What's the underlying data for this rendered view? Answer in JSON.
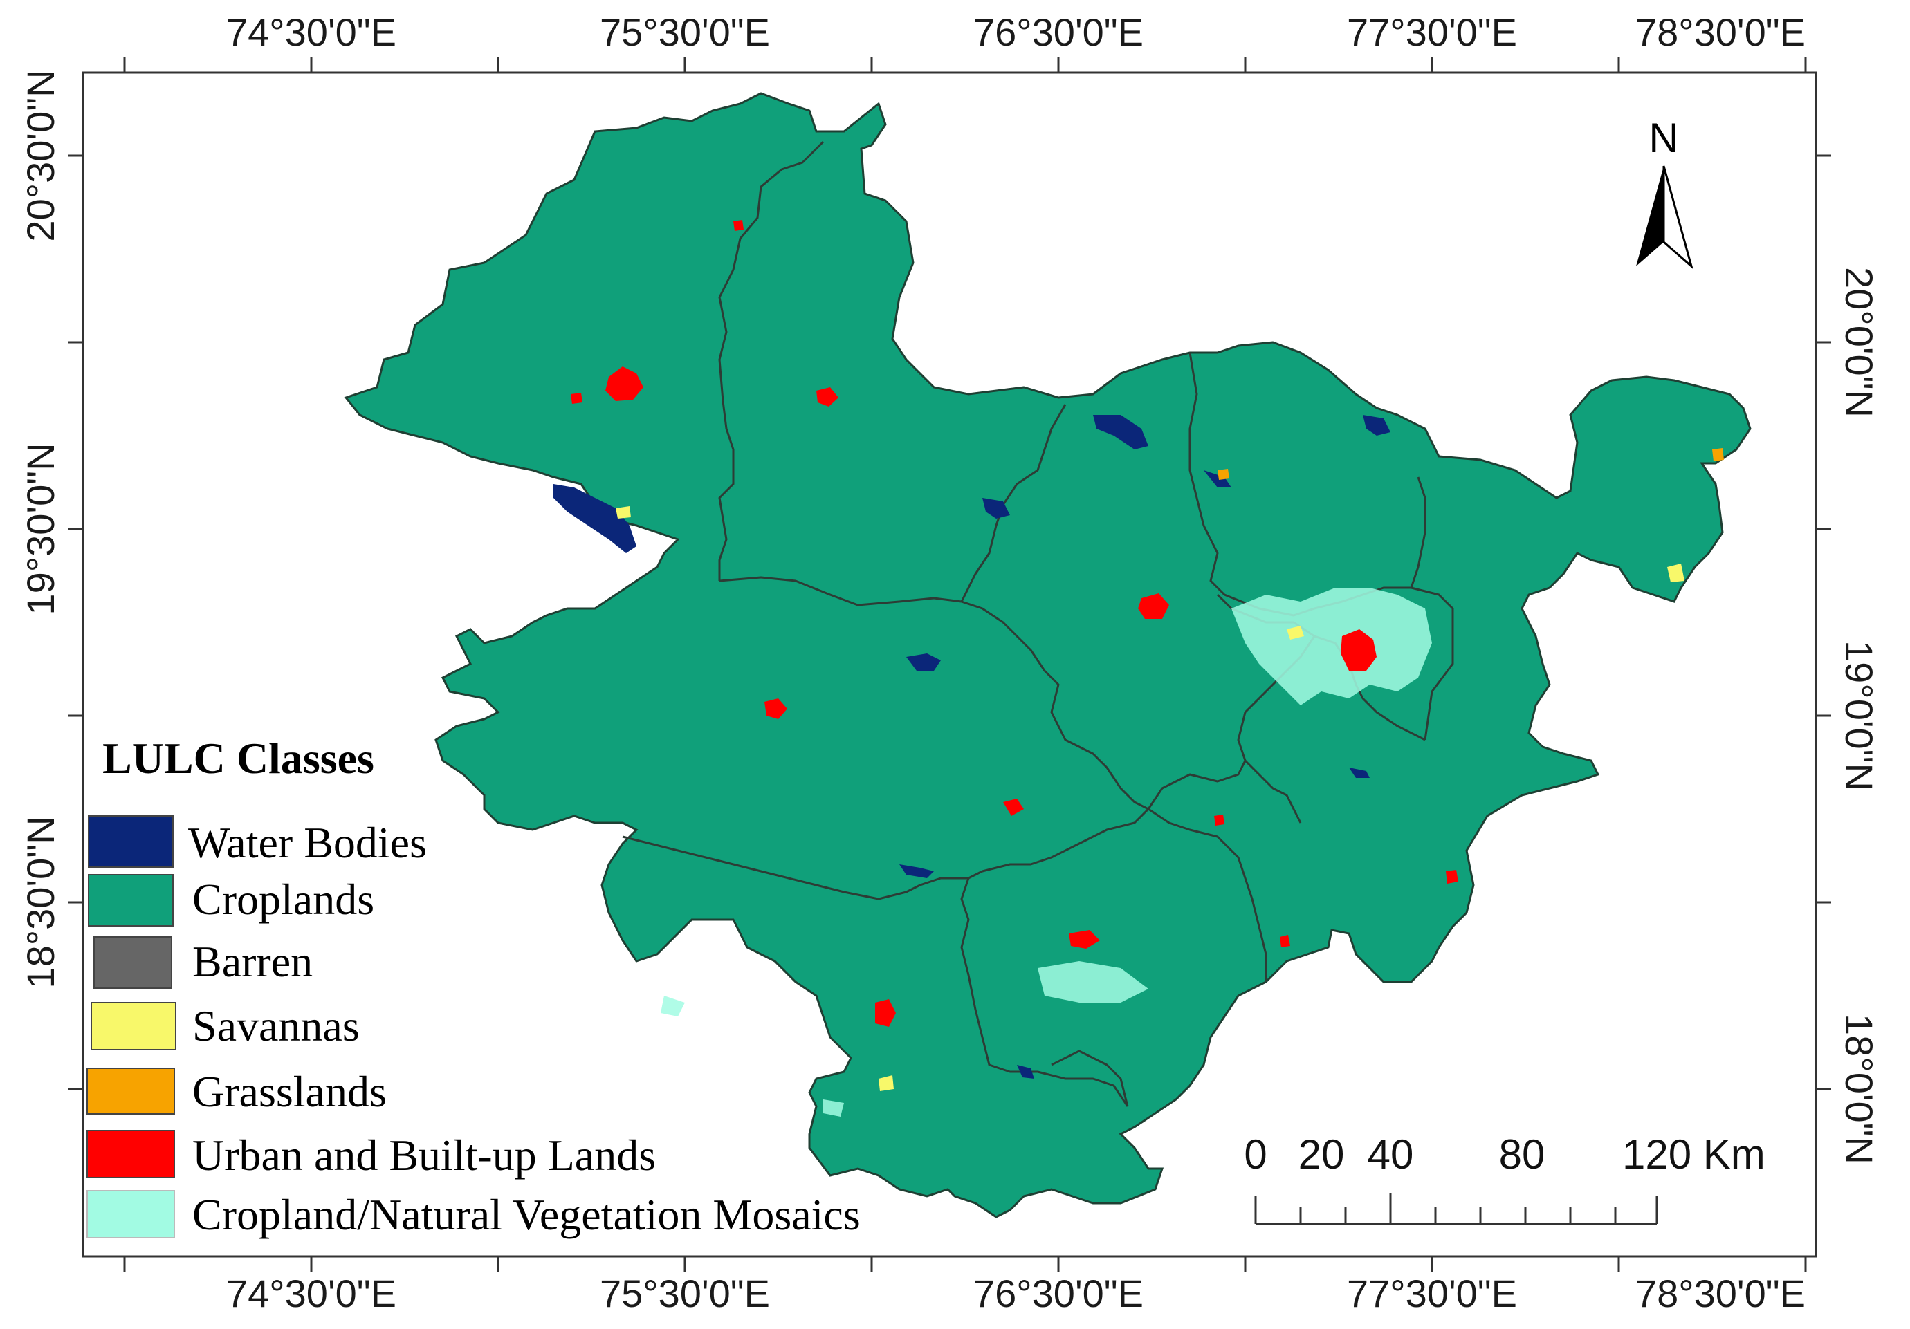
{
  "map": {
    "top_longitudes": [
      "74°30'0\"E",
      "75°30'0\"E",
      "76°30'0\"E",
      "77°30'0\"E",
      "78°30'0\"E"
    ],
    "bottom_longitudes": [
      "74°30'0\"E",
      "75°30'0\"E",
      "76°30'0\"E",
      "77°30'0\"E",
      "78°30'0\"E"
    ],
    "left_latitudes": [
      "20°30'0\"N",
      "19°30'0\"N",
      "18°30'0\"N"
    ],
    "right_latitudes": [
      "20°0'0\"N",
      "19°0'0\"N",
      "18°0'0\"N"
    ],
    "north_arrow_label": "N",
    "scale_bar": {
      "labels": [
        "0",
        "20",
        "40",
        "80",
        "120 Km"
      ]
    }
  },
  "legend": {
    "title": "LULC Classes",
    "items": [
      {
        "label": "Water Bodies",
        "color": "#0b2679"
      },
      {
        "label": "Croplands",
        "color": "#10a07a"
      },
      {
        "label": "Barren",
        "color": "#666666"
      },
      {
        "label": "Savannas",
        "color": "#f8f86a"
      },
      {
        "label": "Grasslands",
        "color": "#f7a300"
      },
      {
        "label": "Urban and Built-up Lands",
        "color": "#ff0000"
      },
      {
        "label": "Cropland/Natural Vegetation Mosaics",
        "color": "#a2fbe3"
      }
    ]
  }
}
